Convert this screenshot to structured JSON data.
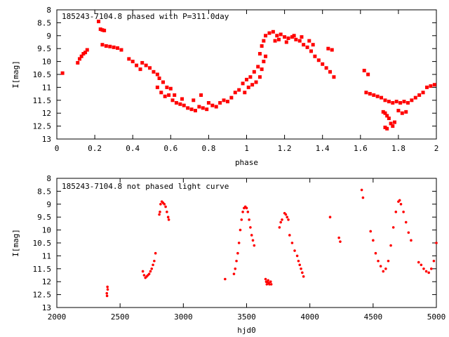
{
  "colors": {
    "points": "#ff0000",
    "axes": "#000000",
    "background": "#ffffff"
  },
  "chart_data": [
    {
      "type": "scatter",
      "title": "185243-7104.8 phased with P=311.0day",
      "xlabel": "phase",
      "ylabel": "I[mag]",
      "xlim": [
        0,
        2
      ],
      "ylim": [
        8,
        13
      ],
      "y_inverted": true,
      "xticks": [
        "0",
        "0.2",
        "0.4",
        "0.6",
        "0.8",
        "1",
        "1.2",
        "1.4",
        "1.6",
        "1.8",
        "2"
      ],
      "yticks": [
        "8",
        "8.5",
        "9",
        "9.5",
        "10",
        "10.5",
        "11",
        "11.5",
        "12",
        "12.5",
        "13"
      ],
      "grid": false,
      "series": [
        {
          "marker": "square",
          "points": [
            [
              0.03,
              10.45
            ],
            [
              0.11,
              10.05
            ],
            [
              0.12,
              9.9
            ],
            [
              0.13,
              9.8
            ],
            [
              0.14,
              9.7
            ],
            [
              0.15,
              9.65
            ],
            [
              0.16,
              9.55
            ],
            [
              0.22,
              8.45
            ],
            [
              0.23,
              8.75
            ],
            [
              0.24,
              8.78
            ],
            [
              0.25,
              8.8
            ],
            [
              0.24,
              9.35
            ],
            [
              0.26,
              9.4
            ],
            [
              0.28,
              9.42
            ],
            [
              0.3,
              9.45
            ],
            [
              0.32,
              9.48
            ],
            [
              0.34,
              9.55
            ],
            [
              0.38,
              9.9
            ],
            [
              0.4,
              10.0
            ],
            [
              0.42,
              10.15
            ],
            [
              0.44,
              10.3
            ],
            [
              0.45,
              10.05
            ],
            [
              0.47,
              10.15
            ],
            [
              0.49,
              10.25
            ],
            [
              0.51,
              10.4
            ],
            [
              0.53,
              10.5
            ],
            [
              0.54,
              10.65
            ],
            [
              0.56,
              10.8
            ],
            [
              0.58,
              11.0
            ],
            [
              0.6,
              11.05
            ],
            [
              0.53,
              11.0
            ],
            [
              0.55,
              11.2
            ],
            [
              0.57,
              11.35
            ],
            [
              0.59,
              11.3
            ],
            [
              0.61,
              11.5
            ],
            [
              0.63,
              11.6
            ],
            [
              0.65,
              11.65
            ],
            [
              0.67,
              11.7
            ],
            [
              0.69,
              11.8
            ],
            [
              0.71,
              11.85
            ],
            [
              0.73,
              11.9
            ],
            [
              0.75,
              11.75
            ],
            [
              0.77,
              11.8
            ],
            [
              0.79,
              11.85
            ],
            [
              0.62,
              11.3
            ],
            [
              0.66,
              11.45
            ],
            [
              0.72,
              11.5
            ],
            [
              0.76,
              11.3
            ],
            [
              0.8,
              11.6
            ],
            [
              0.82,
              11.7
            ],
            [
              0.84,
              11.75
            ],
            [
              0.86,
              11.6
            ],
            [
              0.88,
              11.5
            ],
            [
              0.9,
              11.55
            ],
            [
              0.92,
              11.4
            ],
            [
              0.94,
              11.2
            ],
            [
              0.96,
              11.1
            ],
            [
              0.99,
              11.2
            ],
            [
              1.01,
              11.0
            ],
            [
              1.03,
              10.9
            ],
            [
              1.05,
              10.8
            ],
            [
              1.07,
              10.6
            ],
            [
              1.08,
              10.3
            ],
            [
              1.09,
              10.0
            ],
            [
              1.1,
              9.8
            ],
            [
              0.98,
              10.85
            ],
            [
              1.0,
              10.7
            ],
            [
              1.02,
              10.6
            ],
            [
              1.04,
              10.4
            ],
            [
              1.06,
              10.2
            ],
            [
              1.07,
              9.7
            ],
            [
              1.08,
              9.4
            ],
            [
              1.09,
              9.2
            ],
            [
              1.1,
              9.0
            ],
            [
              1.12,
              8.9
            ],
            [
              1.14,
              8.85
            ],
            [
              1.16,
              9.0
            ],
            [
              1.18,
              8.95
            ],
            [
              1.2,
              9.05
            ],
            [
              1.22,
              9.1
            ],
            [
              1.24,
              9.05
            ],
            [
              1.26,
              9.15
            ],
            [
              1.28,
              9.2
            ],
            [
              1.3,
              9.35
            ],
            [
              1.32,
              9.45
            ],
            [
              1.34,
              9.6
            ],
            [
              1.36,
              9.8
            ],
            [
              1.38,
              9.95
            ],
            [
              1.4,
              10.1
            ],
            [
              1.42,
              10.25
            ],
            [
              1.44,
              10.4
            ],
            [
              1.46,
              10.6
            ],
            [
              1.15,
              9.2
            ],
            [
              1.17,
              9.15
            ],
            [
              1.21,
              9.25
            ],
            [
              1.25,
              9.0
            ],
            [
              1.29,
              9.05
            ],
            [
              1.33,
              9.2
            ],
            [
              1.35,
              9.35
            ],
            [
              1.43,
              9.5
            ],
            [
              1.45,
              9.55
            ],
            [
              1.62,
              10.35
            ],
            [
              1.64,
              10.5
            ],
            [
              1.63,
              11.2
            ],
            [
              1.65,
              11.25
            ],
            [
              1.67,
              11.3
            ],
            [
              1.69,
              11.35
            ],
            [
              1.71,
              11.4
            ],
            [
              1.73,
              11.5
            ],
            [
              1.75,
              11.55
            ],
            [
              1.77,
              11.6
            ],
            [
              1.79,
              11.55
            ],
            [
              1.81,
              11.6
            ],
            [
              1.83,
              11.55
            ],
            [
              1.85,
              11.6
            ],
            [
              1.87,
              11.5
            ],
            [
              1.89,
              11.4
            ],
            [
              1.91,
              11.3
            ],
            [
              1.93,
              11.2
            ],
            [
              1.95,
              11.0
            ],
            [
              1.97,
              10.95
            ],
            [
              1.99,
              10.9
            ],
            [
              1.72,
              11.95
            ],
            [
              1.73,
              12.0
            ],
            [
              1.74,
              12.1
            ],
            [
              1.75,
              12.2
            ],
            [
              1.76,
              12.4
            ],
            [
              1.77,
              12.5
            ],
            [
              1.78,
              12.35
            ],
            [
              1.8,
              11.9
            ],
            [
              1.82,
              12.0
            ],
            [
              1.84,
              11.95
            ],
            [
              1.73,
              12.55
            ],
            [
              1.74,
              12.6
            ]
          ]
        }
      ]
    },
    {
      "type": "scatter",
      "title": "185243-7104.8 not phased light curve",
      "xlabel": "hjd0",
      "ylabel": "I[mag]",
      "xlim": [
        2000,
        5000
      ],
      "ylim": [
        8,
        13
      ],
      "y_inverted": true,
      "xticks": [
        "2000",
        "2500",
        "3000",
        "3500",
        "4000",
        "4500",
        "5000"
      ],
      "yticks": [
        "8",
        "8.5",
        "9",
        "9.5",
        "10",
        "10.5",
        "11",
        "11.5",
        "12",
        "12.5",
        "13"
      ],
      "grid": false,
      "series": [
        {
          "marker": "dot",
          "points": [
            [
              2395,
              12.45
            ],
            [
              2397,
              12.55
            ],
            [
              2400,
              12.2
            ],
            [
              2402,
              12.3
            ],
            [
              2680,
              11.6
            ],
            [
              2690,
              11.75
            ],
            [
              2700,
              11.85
            ],
            [
              2710,
              11.8
            ],
            [
              2720,
              11.75
            ],
            [
              2730,
              11.7
            ],
            [
              2740,
              11.6
            ],
            [
              2750,
              11.5
            ],
            [
              2760,
              11.35
            ],
            [
              2770,
              11.2
            ],
            [
              2780,
              10.9
            ],
            [
              2810,
              9.4
            ],
            [
              2815,
              9.3
            ],
            [
              2820,
              9.0
            ],
            [
              2830,
              8.9
            ],
            [
              2840,
              8.95
            ],
            [
              2850,
              9.0
            ],
            [
              2860,
              9.1
            ],
            [
              2870,
              9.3
            ],
            [
              2880,
              9.5
            ],
            [
              2885,
              9.6
            ],
            [
              3330,
              11.9
            ],
            [
              3400,
              11.7
            ],
            [
              3410,
              11.5
            ],
            [
              3420,
              11.2
            ],
            [
              3430,
              10.9
            ],
            [
              3440,
              10.5
            ],
            [
              3450,
              10.0
            ],
            [
              3460,
              9.6
            ],
            [
              3470,
              9.3
            ],
            [
              3480,
              9.15
            ],
            [
              3490,
              9.1
            ],
            [
              3500,
              9.15
            ],
            [
              3510,
              9.3
            ],
            [
              3520,
              9.6
            ],
            [
              3530,
              9.9
            ],
            [
              3540,
              10.2
            ],
            [
              3550,
              10.4
            ],
            [
              3560,
              10.6
            ],
            [
              3650,
              11.9
            ],
            [
              3655,
              12.0
            ],
            [
              3660,
              12.1
            ],
            [
              3665,
              12.0
            ],
            [
              3670,
              11.95
            ],
            [
              3675,
              12.05
            ],
            [
              3680,
              12.1
            ],
            [
              3690,
              12.0
            ],
            [
              3695,
              12.1
            ],
            [
              3760,
              9.9
            ],
            [
              3770,
              9.7
            ],
            [
              3780,
              9.6
            ],
            [
              3800,
              9.35
            ],
            [
              3810,
              9.4
            ],
            [
              3820,
              9.5
            ],
            [
              3830,
              9.6
            ],
            [
              3840,
              10.2
            ],
            [
              3860,
              10.5
            ],
            [
              3880,
              10.8
            ],
            [
              3900,
              11.0
            ],
            [
              3910,
              11.2
            ],
            [
              3920,
              11.35
            ],
            [
              3930,
              11.5
            ],
            [
              3940,
              11.65
            ],
            [
              3950,
              11.8
            ],
            [
              4160,
              9.5
            ],
            [
              4230,
              10.3
            ],
            [
              4240,
              10.45
            ],
            [
              4410,
              8.45
            ],
            [
              4420,
              8.75
            ],
            [
              4480,
              10.05
            ],
            [
              4500,
              10.4
            ],
            [
              4520,
              10.9
            ],
            [
              4540,
              11.2
            ],
            [
              4560,
              11.4
            ],
            [
              4580,
              11.6
            ],
            [
              4600,
              11.5
            ],
            [
              4620,
              11.2
            ],
            [
              4640,
              10.6
            ],
            [
              4660,
              9.9
            ],
            [
              4680,
              9.3
            ],
            [
              4700,
              8.9
            ],
            [
              4710,
              8.85
            ],
            [
              4720,
              9.0
            ],
            [
              4740,
              9.3
            ],
            [
              4760,
              9.7
            ],
            [
              4780,
              10.1
            ],
            [
              4800,
              10.4
            ],
            [
              4860,
              11.25
            ],
            [
              4880,
              11.35
            ],
            [
              4900,
              11.5
            ],
            [
              4920,
              11.6
            ],
            [
              4940,
              11.65
            ],
            [
              4960,
              11.5
            ],
            [
              4980,
              11.2
            ],
            [
              5000,
              10.5
            ]
          ]
        }
      ]
    }
  ]
}
